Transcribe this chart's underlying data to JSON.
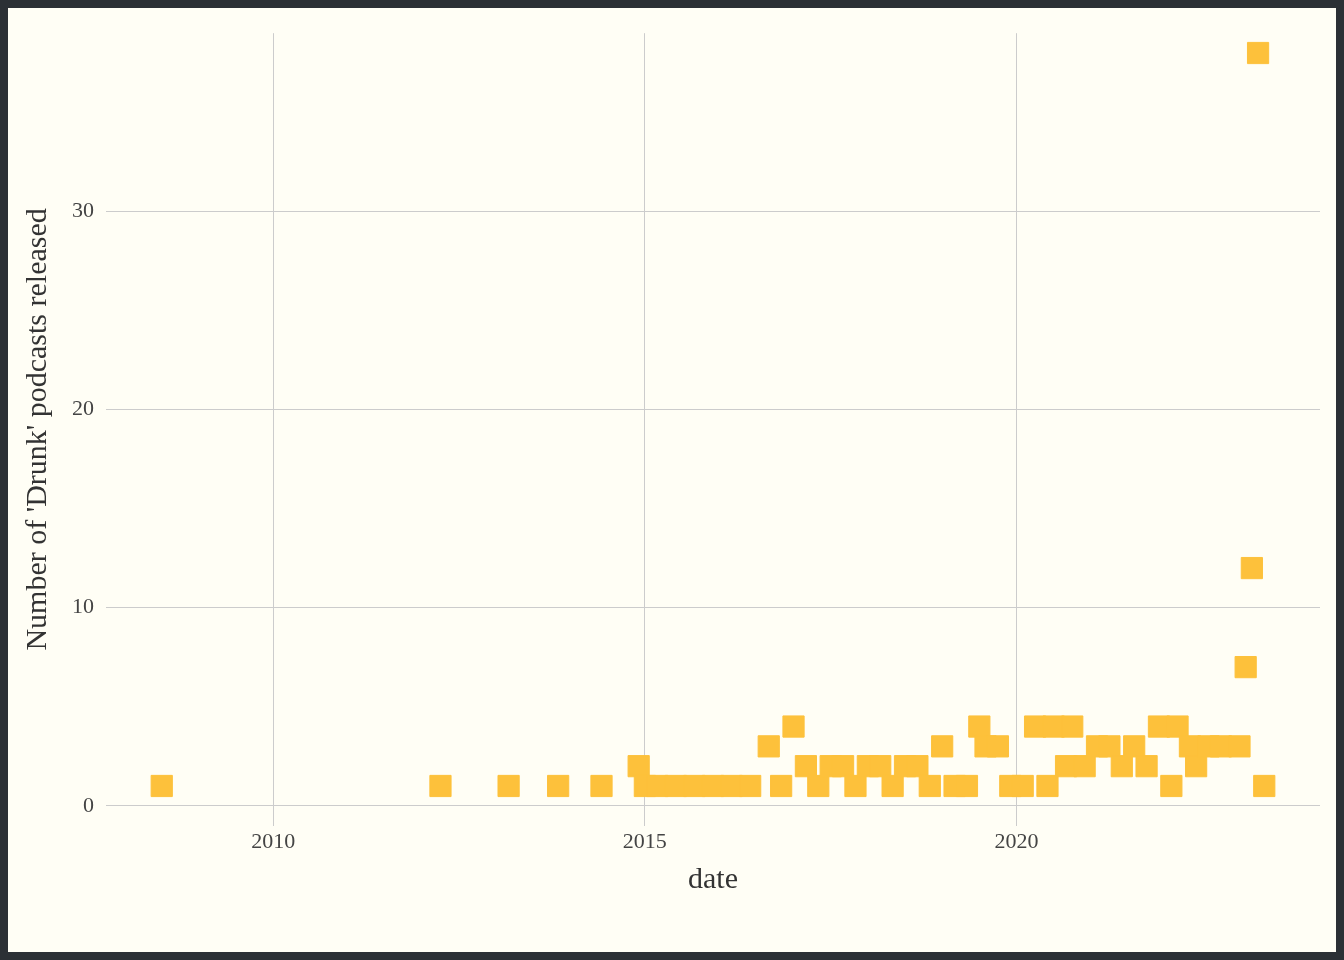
{
  "chart_data": {
    "type": "scatter",
    "xlabel": "date",
    "ylabel": "Number of 'Drunk' podcasts released",
    "x": [
      "2008-07",
      "2012-04",
      "2013-03",
      "2013-11",
      "2014-06",
      "2014-12",
      "2015-01",
      "2015-03",
      "2015-06",
      "2015-09",
      "2015-12",
      "2016-03",
      "2016-06",
      "2016-09",
      "2016-11",
      "2017-01",
      "2017-03",
      "2017-05",
      "2017-07",
      "2017-09",
      "2017-11",
      "2018-01",
      "2018-03",
      "2018-05",
      "2018-07",
      "2018-09",
      "2018-11",
      "2019-01",
      "2019-03",
      "2019-05",
      "2019-07",
      "2019-08",
      "2019-10",
      "2019-12",
      "2020-02",
      "2020-04",
      "2020-06",
      "2020-07",
      "2020-09",
      "2020-10",
      "2020-12",
      "2021-02",
      "2021-04",
      "2021-06",
      "2021-08",
      "2021-10",
      "2021-12",
      "2022-02",
      "2022-03",
      "2022-05",
      "2022-06",
      "2022-08",
      "2022-10",
      "2023-01",
      "2023-02",
      "2023-03",
      "2023-04",
      "2023-05"
    ],
    "series": [
      {
        "color": "#fdc13b",
        "values": [
          1,
          1,
          1,
          1,
          1,
          2,
          1,
          1,
          1,
          1,
          1,
          1,
          1,
          3,
          1,
          4,
          2,
          1,
          2,
          2,
          1,
          2,
          2,
          1,
          2,
          2,
          1,
          3,
          1,
          1,
          4,
          3,
          3,
          1,
          1,
          4,
          1,
          4,
          2,
          4,
          2,
          3,
          3,
          2,
          3,
          2,
          4,
          1,
          4,
          3,
          2,
          3,
          3,
          3,
          7,
          12,
          38,
          1
        ]
      }
    ],
    "xlim": [
      "2007-10",
      "2024-02"
    ],
    "xticks": [
      {
        "value": "2010",
        "label": "2010"
      },
      {
        "value": "2015",
        "label": "2015"
      },
      {
        "value": "2020",
        "label": "2020"
      }
    ],
    "ylim": [
      -1,
      39
    ],
    "yticks": [
      0,
      10,
      20,
      30
    ],
    "grid": true,
    "legend": false,
    "marker": "square"
  }
}
